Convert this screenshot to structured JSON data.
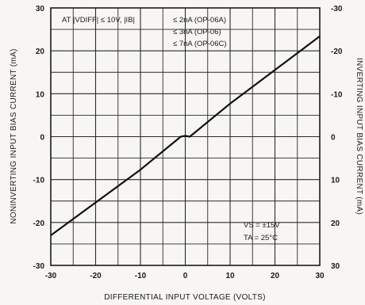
{
  "chart_data": {
    "type": "line",
    "xlabel": "DIFFERENTIAL INPUT VOLTAGE (VOLTS)",
    "ylabel_left": "NONINVERTING INPUT BIAS CURRENT (mA)",
    "ylabel_right": "INVERTING INPUT BIAS CURRENT (mA)",
    "xlim": [
      -30,
      30
    ],
    "ylim": [
      -30,
      30
    ],
    "grid": true,
    "x_ticks": [
      -30,
      -20,
      -10,
      0,
      10,
      20,
      30
    ],
    "y_ticks_left": [
      30,
      20,
      10,
      0,
      -10,
      -20,
      -30
    ],
    "y_ticks_right": [
      "-30",
      "-20",
      "-10",
      "0",
      "10",
      "20",
      "30"
    ],
    "series": [
      {
        "x": [
          -30,
          -10,
          -1,
          0,
          1,
          10,
          30
        ],
        "y": [
          -23,
          -7.7,
          0,
          0.2,
          0,
          7.7,
          23.4
        ]
      }
    ],
    "annotations": {
      "condition_line1": "AT |VDIFF| ≤ 10V, |IB|",
      "op06a": "≤ 2nA (OP-06A)",
      "op06": "≤ 3nA (OP-06)",
      "op06c": "≤ 7nA (OP-06C)",
      "vs": "VS = ±15V",
      "ta": "TA = 25°C"
    }
  }
}
